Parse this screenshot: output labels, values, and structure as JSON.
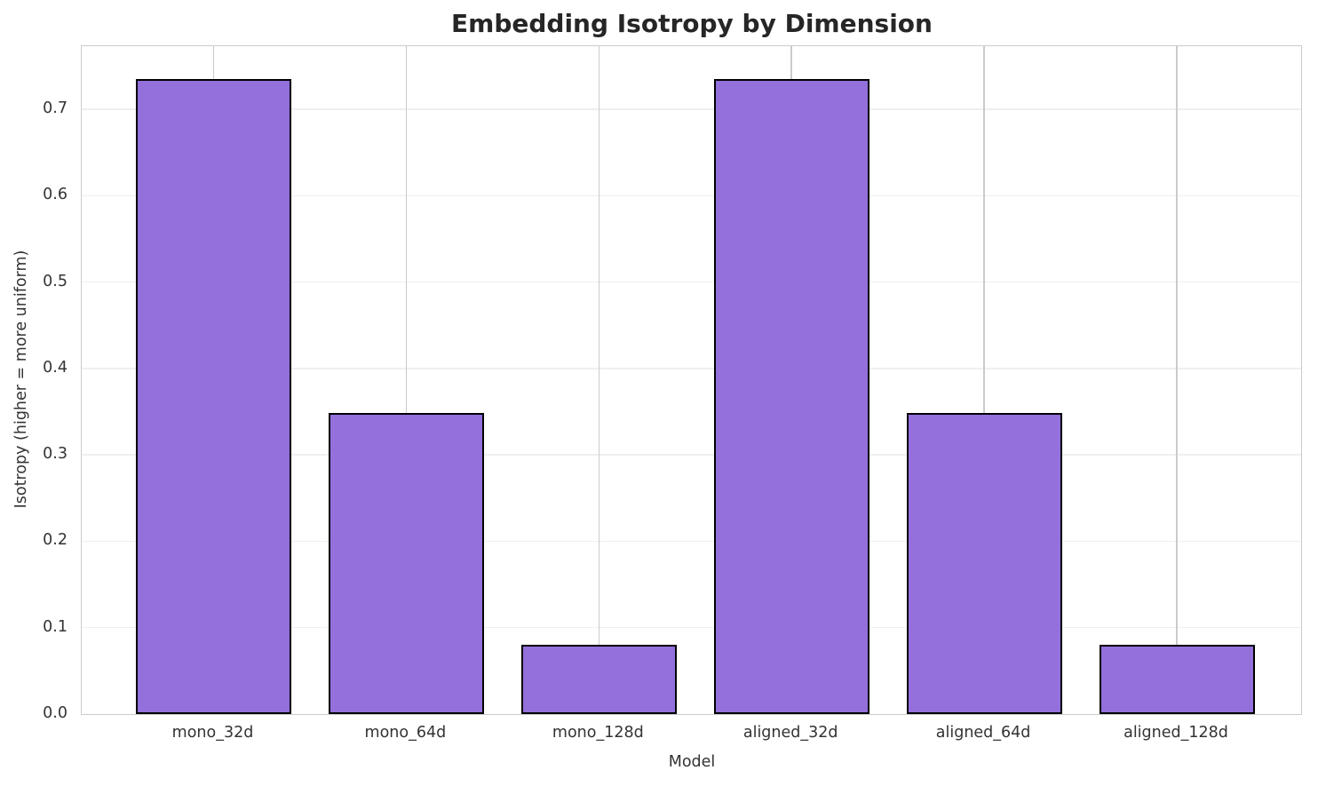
{
  "chart_data": {
    "type": "bar",
    "title": "Embedding Isotropy by Dimension",
    "xlabel": "Model",
    "ylabel": "Isotropy (higher = more uniform)",
    "categories": [
      "mono_32d",
      "mono_64d",
      "mono_128d",
      "aligned_32d",
      "aligned_64d",
      "aligned_128d"
    ],
    "values": [
      0.735,
      0.348,
      0.08,
      0.735,
      0.348,
      0.08
    ],
    "ylim": [
      0,
      0.773
    ],
    "yticks": [
      0.0,
      0.1,
      0.2,
      0.3,
      0.4,
      0.5,
      0.6,
      0.7
    ],
    "ytick_labels": [
      "0.0",
      "0.1",
      "0.2",
      "0.3",
      "0.4",
      "0.5",
      "0.6",
      "0.7"
    ],
    "grid": true,
    "legend_position": "none",
    "bar_color": "#9370DB",
    "bar_edge_color": "#000000",
    "h_grid_color": "#efefef",
    "v_grid_color": "#cbcbcb",
    "spine_color": "#cccccc",
    "title_color": "#262626",
    "text_color": "#333333"
  }
}
